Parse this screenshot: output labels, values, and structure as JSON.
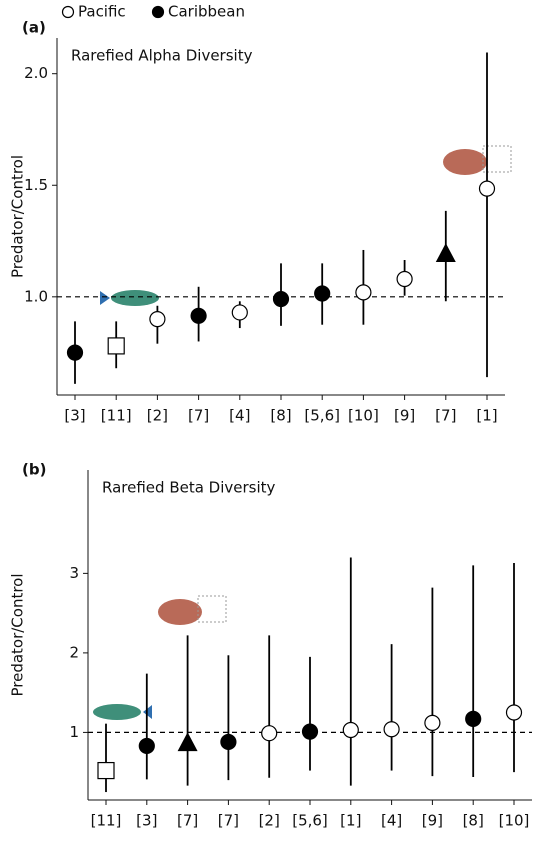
{
  "chart_data": [
    {
      "type": "errorbar",
      "panel_label": "(a)",
      "title": "Rarefied Alpha Diversity",
      "y_label": "Predator/Control",
      "legend": [
        {
          "name": "Pacific",
          "marker": "open-circle"
        },
        {
          "name": "Caribbean",
          "marker": "filled-circle"
        }
      ],
      "categories": [
        "[3]",
        "[11]",
        "[2]",
        "[7]",
        "[4]",
        "[8]",
        "[5,6]",
        "[10]",
        "[9]",
        "[7]",
        "[1]"
      ],
      "values": [
        0.75,
        0.78,
        0.9,
        0.915,
        0.93,
        0.99,
        1.015,
        1.02,
        1.08,
        1.19,
        1.485
      ],
      "lower": [
        0.61,
        0.68,
        0.79,
        0.8,
        0.86,
        0.87,
        0.875,
        0.875,
        1.005,
        0.98,
        0.64
      ],
      "upper": [
        0.89,
        0.89,
        0.96,
        1.045,
        0.98,
        1.15,
        1.15,
        1.21,
        1.165,
        1.385,
        2.095
      ],
      "markers": [
        "filled-circle",
        "open-square",
        "open-circle",
        "filled-circle",
        "open-circle",
        "filled-circle",
        "filled-circle",
        "open-circle",
        "open-circle",
        "filled-triangle",
        "open-circle"
      ],
      "reference_line": 1,
      "ylim": [
        0.56,
        2.16
      ],
      "yticks": [
        {
          "value": 1,
          "label": "1.0"
        },
        {
          "value": 1.5,
          "label": "1.5"
        },
        {
          "value": 2,
          "label": "2.0"
        }
      ]
    },
    {
      "type": "errorbar",
      "panel_label": "(b)",
      "title": "Rarefied Beta Diversity",
      "y_label": "Predator/Control",
      "categories": [
        "[11]",
        "[3]",
        "[7]",
        "[7]",
        "[2]",
        "[5,6]",
        "[1]",
        "[4]",
        "[9]",
        "[8]",
        "[10]"
      ],
      "values": [
        0.52,
        0.83,
        0.86,
        0.88,
        0.99,
        1.01,
        1.03,
        1.04,
        1.12,
        1.17,
        1.25
      ],
      "lower": [
        0.25,
        0.41,
        0.33,
        0.4,
        0.43,
        0.52,
        0.33,
        0.52,
        0.45,
        0.44,
        0.5
      ],
      "upper": [
        1.11,
        1.74,
        2.22,
        1.97,
        2.22,
        1.95,
        3.2,
        2.11,
        2.82,
        3.1,
        3.13
      ],
      "markers": [
        "open-square",
        "filled-circle",
        "filled-triangle",
        "filled-circle",
        "open-circle",
        "filled-circle",
        "open-circle",
        "open-circle",
        "open-circle",
        "filled-circle",
        "open-circle"
      ],
      "reference_line": 1,
      "ylim": [
        0.15,
        4.3
      ],
      "yticks": [
        1,
        2,
        3
      ]
    }
  ]
}
